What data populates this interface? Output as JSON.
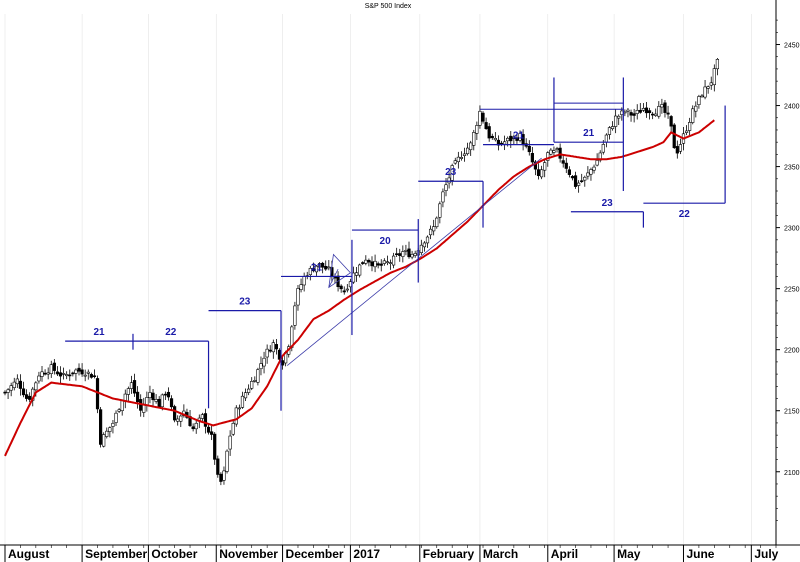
{
  "chart_data": {
    "type": "candlestick",
    "title": "S&P 500 Index",
    "ylim": [
      2040,
      2475
    ],
    "y_ticks": [
      2100,
      2150,
      2200,
      2250,
      2300,
      2350,
      2400,
      2450
    ],
    "x_range_weeks": [
      0,
      50
    ],
    "months": [
      {
        "label": "August",
        "week": 0
      },
      {
        "label": "September",
        "week": 5
      },
      {
        "label": "October",
        "week": 9.3
      },
      {
        "label": "November",
        "week": 13.7
      },
      {
        "label": "December",
        "week": 18
      },
      {
        "label": "2017",
        "week": 22.4
      },
      {
        "label": "February",
        "week": 26.9
      },
      {
        "label": "March",
        "week": 30.8
      },
      {
        "label": "April",
        "week": 35.2
      },
      {
        "label": "May",
        "week": 39.5
      },
      {
        "label": "June",
        "week": 44
      },
      {
        "label": "July",
        "week": 48.4
      }
    ],
    "price_anchors": [
      [
        0.0,
        2165
      ],
      [
        0.8,
        2175
      ],
      [
        1.5,
        2158
      ],
      [
        2.2,
        2180
      ],
      [
        3.0,
        2185
      ],
      [
        3.8,
        2178
      ],
      [
        4.5,
        2183
      ],
      [
        5.2,
        2182
      ],
      [
        5.8,
        2178
      ],
      [
        6.2,
        2125
      ],
      [
        7.0,
        2140
      ],
      [
        7.6,
        2160
      ],
      [
        8.2,
        2172
      ],
      [
        8.8,
        2150
      ],
      [
        9.4,
        2165
      ],
      [
        10.0,
        2155
      ],
      [
        10.5,
        2168
      ],
      [
        11.0,
        2140
      ],
      [
        11.6,
        2150
      ],
      [
        12.2,
        2135
      ],
      [
        12.8,
        2145
      ],
      [
        13.4,
        2128
      ],
      [
        13.8,
        2095
      ],
      [
        14.1,
        2090
      ],
      [
        14.5,
        2125
      ],
      [
        15.0,
        2150
      ],
      [
        15.6,
        2165
      ],
      [
        16.3,
        2180
      ],
      [
        16.8,
        2195
      ],
      [
        17.4,
        2205
      ],
      [
        18.0,
        2190
      ],
      [
        18.4,
        2205
      ],
      [
        18.9,
        2245
      ],
      [
        19.5,
        2262
      ],
      [
        20.3,
        2270
      ],
      [
        21.0,
        2265
      ],
      [
        21.5,
        2255
      ],
      [
        22.0,
        2248
      ],
      [
        22.6,
        2262
      ],
      [
        23.4,
        2275
      ],
      [
        24.2,
        2268
      ],
      [
        25.0,
        2272
      ],
      [
        25.8,
        2280
      ],
      [
        26.5,
        2278
      ],
      [
        27.2,
        2290
      ],
      [
        27.8,
        2300
      ],
      [
        28.4,
        2328
      ],
      [
        29.0,
        2348
      ],
      [
        29.6,
        2360
      ],
      [
        30.2,
        2368
      ],
      [
        30.8,
        2395
      ],
      [
        31.4,
        2375
      ],
      [
        32.0,
        2368
      ],
      [
        32.7,
        2372
      ],
      [
        33.4,
        2375
      ],
      [
        34.0,
        2360
      ],
      [
        34.6,
        2340
      ],
      [
        35.2,
        2360
      ],
      [
        35.8,
        2362
      ],
      [
        36.4,
        2350
      ],
      [
        37.0,
        2335
      ],
      [
        37.6,
        2340
      ],
      [
        38.4,
        2355
      ],
      [
        39.0,
        2375
      ],
      [
        39.6,
        2390
      ],
      [
        40.2,
        2395
      ],
      [
        40.8,
        2392
      ],
      [
        41.4,
        2398
      ],
      [
        42.0,
        2395
      ],
      [
        42.6,
        2398
      ],
      [
        43.1,
        2388
      ],
      [
        43.5,
        2360
      ],
      [
        44.0,
        2375
      ],
      [
        44.6,
        2395
      ],
      [
        45.2,
        2410
      ],
      [
        45.8,
        2420
      ],
      [
        46.2,
        2435
      ]
    ],
    "ma_anchors": [
      [
        0.0,
        2113
      ],
      [
        1.0,
        2140
      ],
      [
        2.0,
        2165
      ],
      [
        3.0,
        2173
      ],
      [
        5.0,
        2170
      ],
      [
        7.0,
        2160
      ],
      [
        9.0,
        2155
      ],
      [
        11.0,
        2150
      ],
      [
        12.5,
        2142
      ],
      [
        13.5,
        2138
      ],
      [
        15.0,
        2143
      ],
      [
        16.0,
        2152
      ],
      [
        17.0,
        2170
      ],
      [
        18.0,
        2195
      ],
      [
        19.0,
        2208
      ],
      [
        20.0,
        2225
      ],
      [
        21.0,
        2232
      ],
      [
        22.0,
        2241
      ],
      [
        23.0,
        2249
      ],
      [
        24.0,
        2256
      ],
      [
        25.0,
        2263
      ],
      [
        26.0,
        2268
      ],
      [
        27.0,
        2275
      ],
      [
        28.0,
        2283
      ],
      [
        29.0,
        2294
      ],
      [
        30.0,
        2305
      ],
      [
        31.0,
        2318
      ],
      [
        32.0,
        2331
      ],
      [
        33.0,
        2342
      ],
      [
        34.0,
        2350
      ],
      [
        35.0,
        2356
      ],
      [
        36.0,
        2360
      ],
      [
        37.0,
        2358
      ],
      [
        38.0,
        2356
      ],
      [
        39.0,
        2356
      ],
      [
        40.0,
        2358
      ],
      [
        41.0,
        2362
      ],
      [
        42.0,
        2366
      ],
      [
        42.7,
        2370
      ],
      [
        43.2,
        2378
      ],
      [
        44.0,
        2373
      ],
      [
        45.0,
        2378
      ],
      [
        46.0,
        2388
      ]
    ],
    "trendlines": [
      {
        "from": [
          18.3,
          2187
        ],
        "to": [
          34.8,
          2357
        ]
      },
      {
        "from": [
          21.0,
          2251
        ],
        "to": [
          21.6,
          2266
        ]
      }
    ],
    "cycle_markers": [
      {
        "label": "21",
        "from_week": 3.9,
        "to_week": 8.3,
        "y": 2207,
        "tick_from": 2200,
        "tick_to": 2213
      },
      {
        "label": "22",
        "from_week": 8.3,
        "to_week": 13.2,
        "y": 2207,
        "tick_from": 2152,
        "tick_to": 2207
      },
      {
        "label": "23",
        "from_week": 13.2,
        "to_week": 17.9,
        "y": 2232,
        "tick_from": 2150,
        "tick_to": 2232
      },
      {
        "label": "21",
        "from_week": 17.9,
        "to_week": 22.5,
        "y": 2260,
        "tick_from": 2212,
        "tick_to": 2290
      },
      {
        "label": "20",
        "from_week": 22.5,
        "to_week": 26.8,
        "y": 2298,
        "tick_from": 2255,
        "tick_to": 2307
      },
      {
        "label": "23",
        "from_week": 26.8,
        "to_week": 31.0,
        "y": 2338,
        "tick_from": 2300,
        "tick_to": 2338
      },
      {
        "label": "21",
        "from_week": 31.0,
        "to_week": 35.6,
        "y": 2368,
        "tick_from": 2370,
        "tick_to": 2423
      },
      {
        "label": "21",
        "from_week": 35.6,
        "to_week": 40.1,
        "y": 2370,
        "tick_from": 2330,
        "tick_to": 2423
      },
      {
        "label": "23",
        "from_week": 36.7,
        "to_week": 41.4,
        "y": 2313,
        "tick_from": 2300,
        "tick_to": 2313
      },
      {
        "label": "22",
        "from_week": 41.4,
        "to_week": 46.7,
        "y": 2320,
        "tick_from": 2320,
        "tick_to": 2400
      }
    ],
    "resistance_lines": [
      {
        "from_week": 30.8,
        "to_week": 40.1,
        "y": 2397
      },
      {
        "from_week": 35.6,
        "to_week": 40.1,
        "y": 2402
      }
    ],
    "colors": {
      "candles": "#000000",
      "moving_average": "#cc0000",
      "cycle_markers": "#1a1aa8",
      "trendline": "#3a3aa8"
    }
  }
}
